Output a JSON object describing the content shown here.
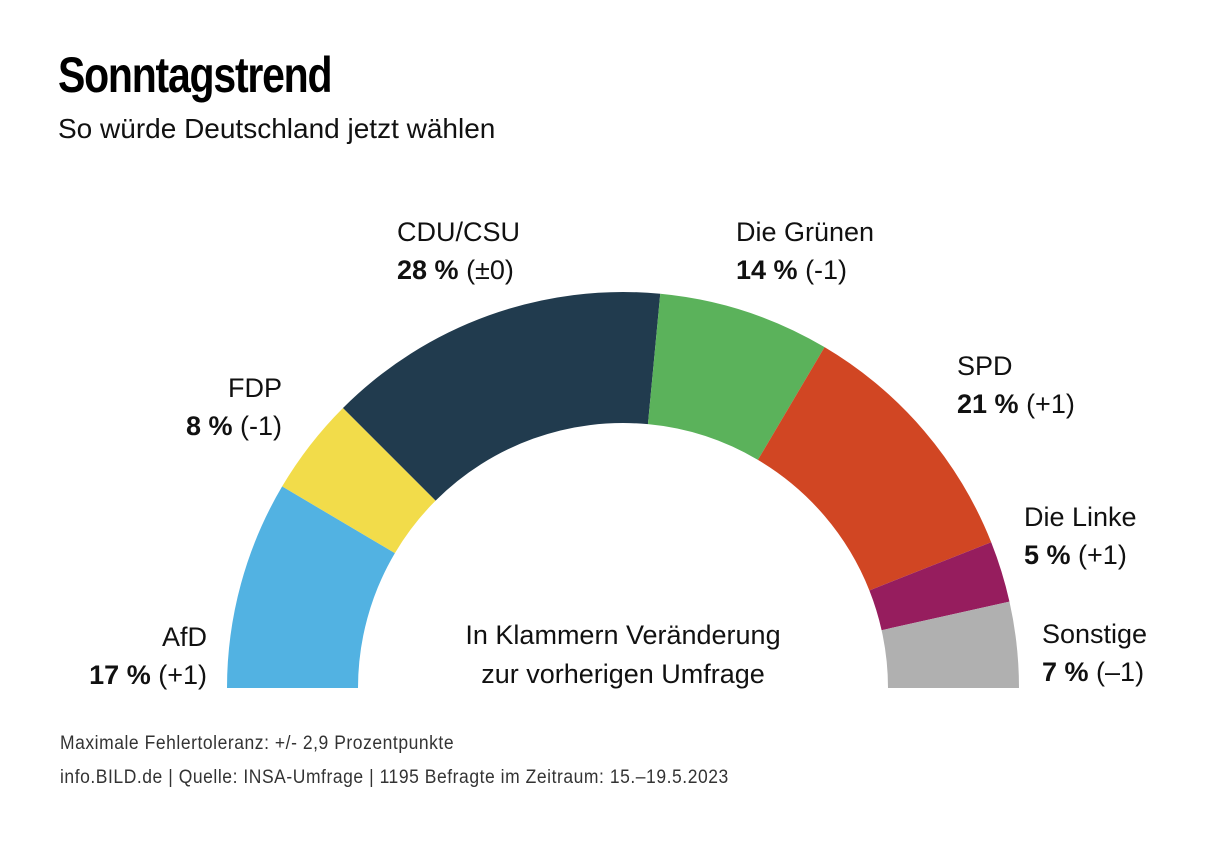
{
  "header": {
    "title": "Sonntagstrend",
    "subtitle": "So würde Deutschland jetzt wählen"
  },
  "chart_data": {
    "type": "pie",
    "variant": "half-donut",
    "title": "Sonntagstrend",
    "subtitle": "So würde Deutschland jetzt wählen",
    "unit": "%",
    "slices": [
      {
        "name": "AfD",
        "value": 17,
        "change": "(+1)",
        "color": "#52B2E2"
      },
      {
        "name": "FDP",
        "value": 8,
        "change": "(-1)",
        "color": "#F2DC4A"
      },
      {
        "name": "CDU/CSU",
        "value": 28,
        "change": "(±0)",
        "color": "#213B4E"
      },
      {
        "name": "Die Grünen",
        "value": 14,
        "change": "(-1)",
        "color": "#5BB25B"
      },
      {
        "name": "SPD",
        "value": 21,
        "change": "(+1)",
        "color": "#D14623"
      },
      {
        "name": "Die Linke",
        "value": 5,
        "change": "(+1)",
        "color": "#961D5E"
      },
      {
        "name": "Sonstige",
        "value": 7,
        "change": "(–1)",
        "color": "#B0B0B0"
      }
    ],
    "annotation": [
      "In Klammern Veränderung",
      "zur vorherigen Umfrage"
    ]
  },
  "labels": {
    "afd": {
      "name": "AfD",
      "pct": "17 %",
      "change": "(+1)"
    },
    "fdp": {
      "name": "FDP",
      "pct": "8 %",
      "change": "(-1)"
    },
    "cdu": {
      "name": "CDU/CSU",
      "pct": "28 %",
      "change": "(±0)"
    },
    "gruene": {
      "name": "Die Grünen",
      "pct": "14 %",
      "change": "(-1)"
    },
    "spd": {
      "name": "SPD",
      "pct": "21 %",
      "change": "(+1)"
    },
    "linke": {
      "name": "Die Linke",
      "pct": "5 %",
      "change": "(+1)"
    },
    "sonstige": {
      "name": "Sonstige",
      "pct": "7 %",
      "change": "(–1)"
    }
  },
  "note": {
    "line1": "In Klammern Veränderung",
    "line2": "zur vorherigen Umfrage"
  },
  "footer": {
    "tolerance": "Maximale Fehlertoleranz: +/- 2,9 Prozentpunkte",
    "source": "info.BILD.de | Quelle: INSA-Umfrage | 1195 Befragte im Zeitraum: 15.–19.5.2023"
  }
}
